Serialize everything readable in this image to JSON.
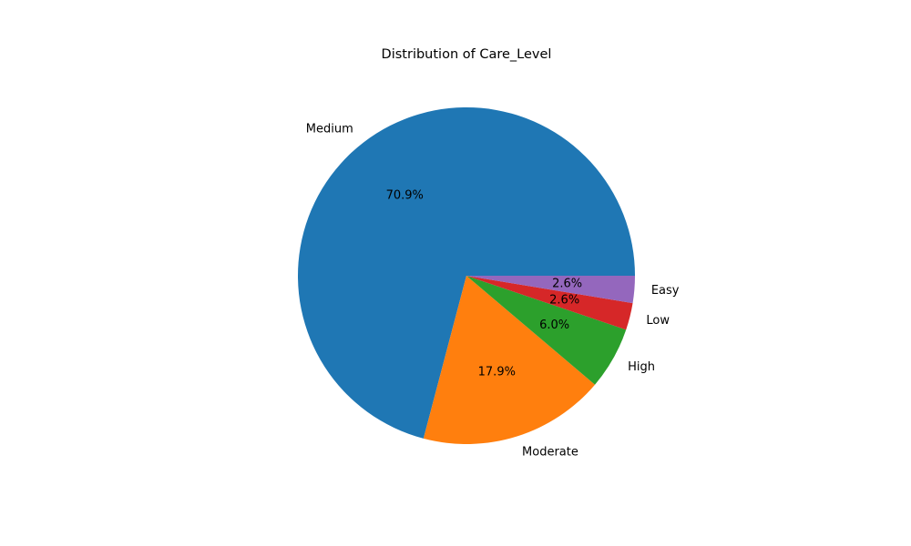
{
  "chart_data": {
    "type": "pie",
    "title": "Distribution of Care_Level",
    "categories": [
      "Medium",
      "Moderate",
      "High",
      "Low",
      "Easy"
    ],
    "values": [
      70.9,
      17.9,
      6.0,
      2.6,
      2.6
    ],
    "percent_labels": [
      "70.9%",
      "17.9%",
      "6.0%",
      "2.6%",
      "2.6%"
    ],
    "colors": [
      "#1f77b4",
      "#ff7f0e",
      "#2ca02c",
      "#d62728",
      "#9467bd"
    ],
    "start_angle_deg": 0,
    "direction": "counterclockwise",
    "legend": "none"
  }
}
